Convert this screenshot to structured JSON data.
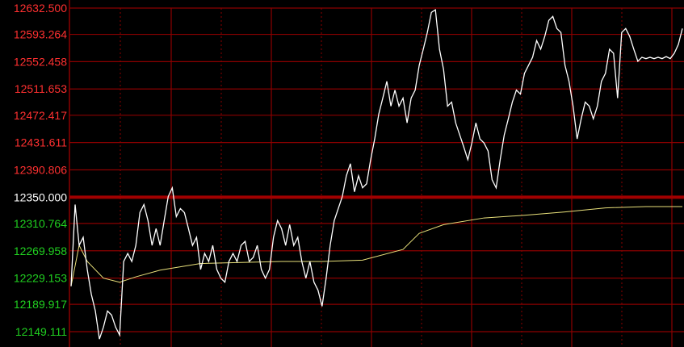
{
  "chart_data": {
    "type": "line",
    "title": "",
    "xlabel": "",
    "ylabel": "",
    "ylim": [
      12149.111,
      12632.5
    ],
    "reference_price": 12350.0,
    "y_ticks": [
      "12632.500",
      "12593.264",
      "12552.458",
      "12511.653",
      "12472.417",
      "12431.611",
      "12390.806",
      "12350.000",
      "12310.764",
      "12269.958",
      "12229.153",
      "12189.917",
      "12149.111"
    ],
    "grid": true,
    "colors": {
      "background": "#000000",
      "grid": "#8b0000",
      "reference_line": "#a00000",
      "price_line": "#ffffff",
      "average_line": "#e8e07a",
      "up_label": "#ff3030",
      "down_label": "#20d020",
      "ref_label": "#ffffff"
    },
    "series": [
      {
        "values": [
          12217,
          12339,
          12278,
          12290,
          12242,
          12205,
          12180,
          12138,
          12156,
          12180,
          12174,
          12156,
          12144,
          12254,
          12266,
          12254,
          12278,
          12327,
          12339,
          12315,
          12278,
          12303,
          12278,
          12315,
          12351,
          12364,
          12321,
          12333,
          12327,
          12303,
          12278,
          12290,
          12242,
          12266,
          12254,
          12278,
          12242,
          12229,
          12223,
          12254,
          12266,
          12254,
          12278,
          12284,
          12254,
          12260,
          12278,
          12242,
          12229,
          12242,
          12290,
          12315,
          12303,
          12278,
          12309,
          12278,
          12290,
          12254,
          12229,
          12254,
          12223,
          12211,
          12187,
          12229,
          12278,
          12315,
          12333,
          12351,
          12382,
          12400,
          12358,
          12382,
          12364,
          12370,
          12406,
          12437,
          12474,
          12498,
          12523,
          12486,
          12510,
          12486,
          12498,
          12461,
          12498,
          12510,
          12547,
          12571,
          12596,
          12626,
          12630,
          12571,
          12541,
          12486,
          12492,
          12461,
          12443,
          12425,
          12406,
          12431,
          12461,
          12437,
          12431,
          12419,
          12376,
          12364,
          12406,
          12443,
          12467,
          12492,
          12510,
          12504,
          12535,
          12547,
          12559,
          12584,
          12571,
          12590,
          12614,
          12620,
          12602,
          12596,
          12547,
          12523,
          12486,
          12437,
          12467,
          12492,
          12486,
          12467,
          12486,
          12523,
          12535,
          12571,
          12565,
          12498,
          12596,
          12602,
          12590,
          12571,
          12553,
          12559,
          12557,
          12559,
          12557,
          12559,
          12557,
          12560,
          12557,
          12565,
          12578,
          12602
        ]
      },
      {
        "points": [
          [
            0,
            12217
          ],
          [
            2,
            12278
          ],
          [
            4,
            12254
          ],
          [
            8,
            12229
          ],
          [
            12,
            12223
          ],
          [
            16,
            12231
          ],
          [
            22,
            12241
          ],
          [
            32,
            12251
          ],
          [
            52,
            12254
          ],
          [
            62,
            12254
          ],
          [
            72,
            12256
          ],
          [
            82,
            12272
          ],
          [
            86,
            12296
          ],
          [
            92,
            12309
          ],
          [
            102,
            12319
          ],
          [
            112,
            12323
          ],
          [
            122,
            12328
          ],
          [
            132,
            12334
          ],
          [
            142,
            12336
          ],
          [
            151,
            12336
          ]
        ]
      }
    ]
  }
}
